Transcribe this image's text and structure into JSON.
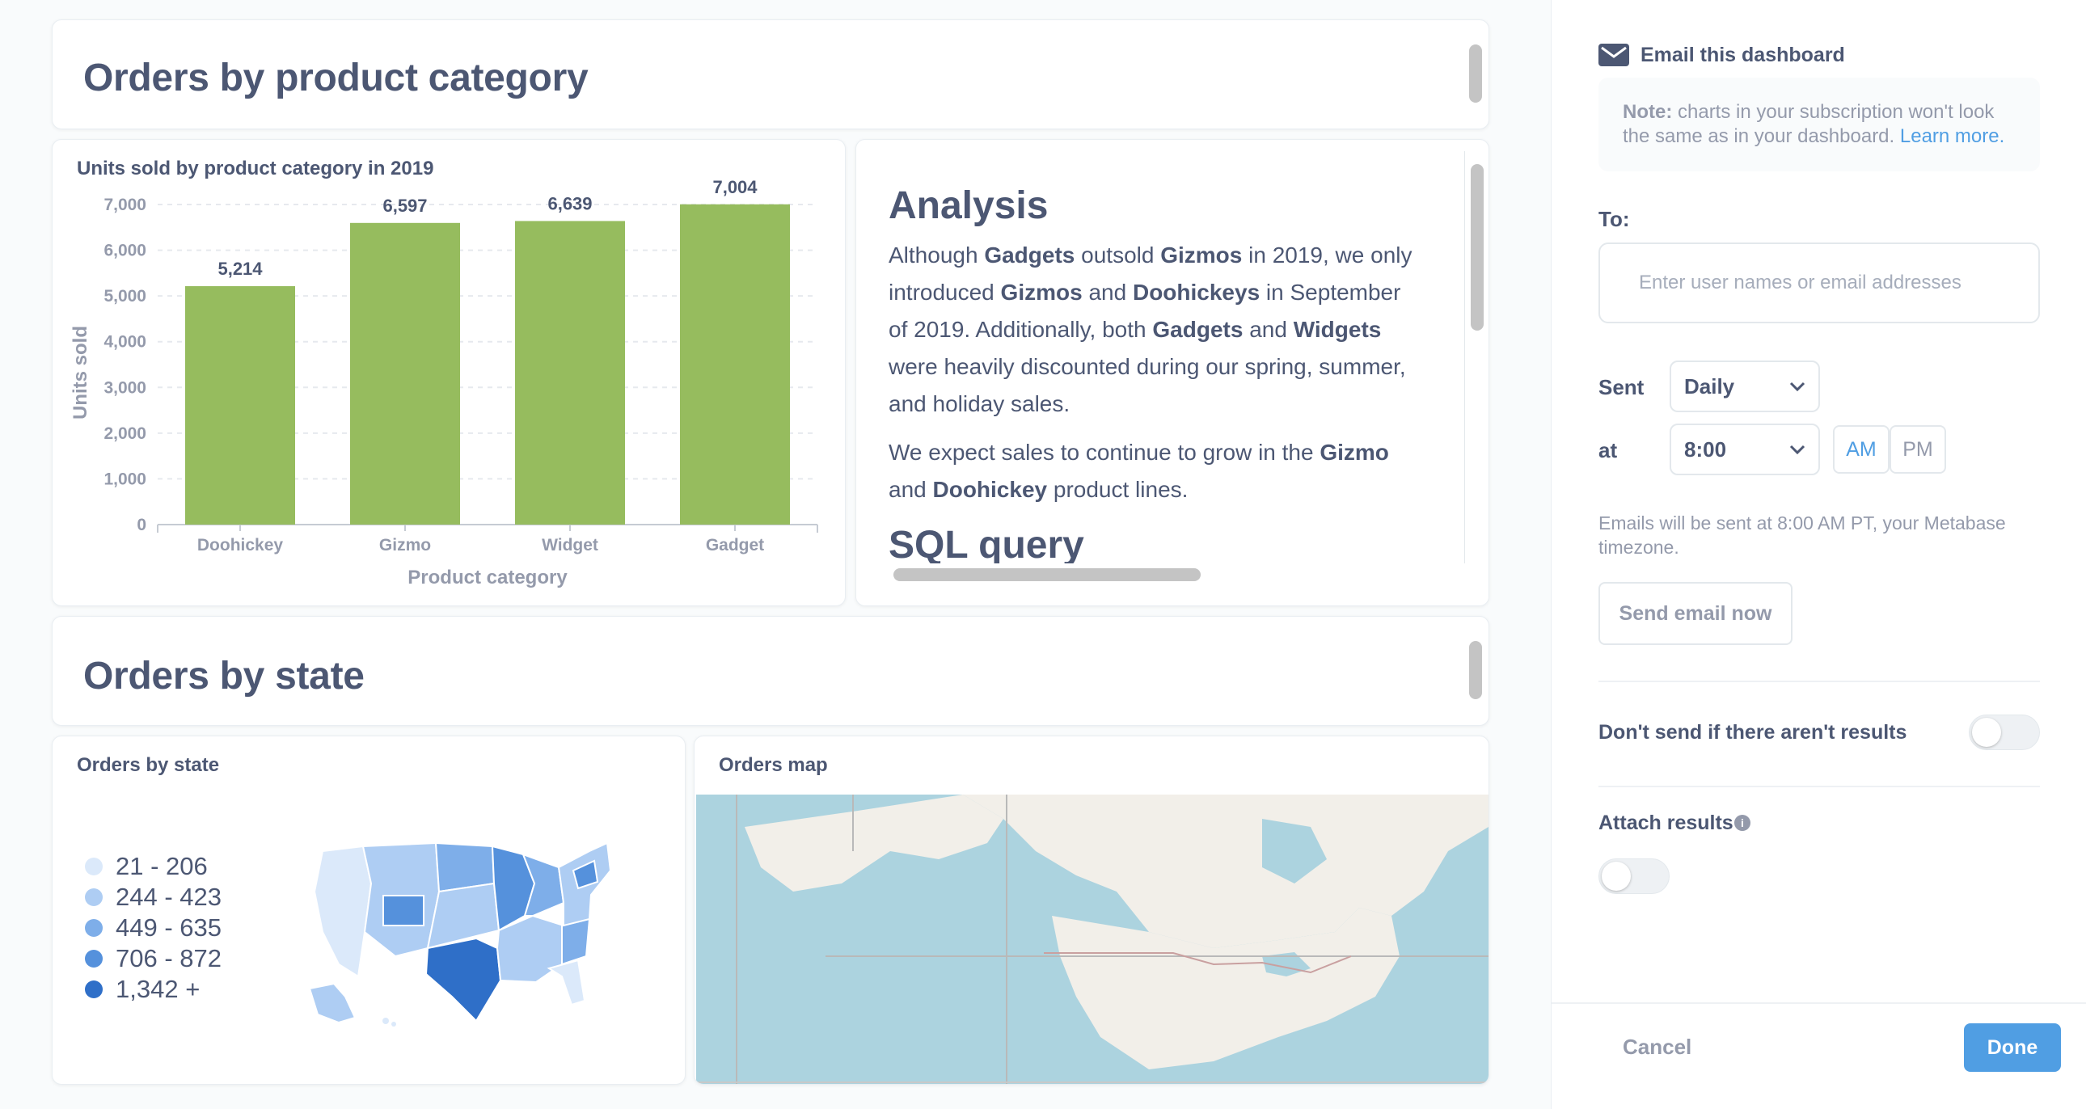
{
  "section1": {
    "title": "Orders by product category"
  },
  "bar_card": {
    "title": "Units sold by product category in 2019"
  },
  "analysis": {
    "heading": "Analysis",
    "p1": [
      {
        "t": "Although ",
        "b": false
      },
      {
        "t": "Gadgets",
        "b": true
      },
      {
        "t": " outsold ",
        "b": false
      },
      {
        "t": "Gizmos",
        "b": true
      },
      {
        "t": " in 2019, we only introduced ",
        "b": false
      },
      {
        "t": "Gizmos",
        "b": true
      },
      {
        "t": " and ",
        "b": false
      },
      {
        "t": "Doohickeys",
        "b": true
      },
      {
        "t": " in September of 2019. Additionally, both ",
        "b": false
      },
      {
        "t": "Gadgets",
        "b": true
      },
      {
        "t": " and ",
        "b": false
      },
      {
        "t": "Widgets",
        "b": true
      },
      {
        "t": " were heavily discounted during our spring, summer, and holiday sales.",
        "b": false
      }
    ],
    "p2": [
      {
        "t": "We expect sales to continue to grow in the ",
        "b": false
      },
      {
        "t": "Gizmo",
        "b": true
      },
      {
        "t": " and ",
        "b": false
      },
      {
        "t": "Doohickey",
        "b": true
      },
      {
        "t": " product lines.",
        "b": false
      }
    ],
    "next_heading": "SQL query"
  },
  "section2": {
    "title": "Orders by state"
  },
  "state_card": {
    "title": "Orders by state",
    "legend": [
      {
        "label": "21 - 206",
        "color": "#dbe9fa"
      },
      {
        "label": "244 - 423",
        "color": "#aecdf3"
      },
      {
        "label": "449 - 635",
        "color": "#7eaee9"
      },
      {
        "label": "706 - 872",
        "color": "#5591dc"
      },
      {
        "label": "1,342 +",
        "color": "#2f6fc8"
      }
    ]
  },
  "map_card": {
    "title": "Orders map"
  },
  "chart_data": {
    "type": "bar",
    "title": "Units sold by product category in 2019",
    "xlabel": "Product category",
    "ylabel": "Units sold",
    "categories": [
      "Doohickey",
      "Gizmo",
      "Widget",
      "Gadget"
    ],
    "values": [
      5214,
      6597,
      6639,
      7004
    ],
    "value_labels": [
      "5,214",
      "6,597",
      "6,639",
      "7,004"
    ],
    "ylim": [
      0,
      7000
    ],
    "yticks": [
      {
        "v": 0,
        "label": "0"
      },
      {
        "v": 1000,
        "label": "1,000"
      },
      {
        "v": 2000,
        "label": "2,000"
      },
      {
        "v": 3000,
        "label": "3,000"
      },
      {
        "v": 4000,
        "label": "4,000"
      },
      {
        "v": 5000,
        "label": "5,000"
      },
      {
        "v": 6000,
        "label": "6,000"
      },
      {
        "v": 7000,
        "label": "7,000"
      }
    ],
    "grid": true,
    "color": "#96bc5e"
  },
  "sidebar": {
    "email_title": "Email this dashboard",
    "note_bold": "Note:",
    "note_text": " charts in your subscription won't look the same as in your dashboard. ",
    "note_link": "Learn more.",
    "to_label": "To:",
    "to_placeholder": "Enter user names or email addresses",
    "sent_label": "Sent",
    "frequency": "Daily",
    "at_label": "at",
    "time": "8:00",
    "am": "AM",
    "pm": "PM",
    "timezone_note": "Emails will be sent at 8:00 AM PT, your Metabase timezone.",
    "send_now": "Send email now",
    "dont_send_label": "Don't send if there aren't results",
    "attach_label": "Attach results",
    "cancel": "Cancel",
    "done": "Done",
    "colors": {
      "accent": "#509ee3",
      "text": "#4c5773",
      "muted": "#949aab"
    }
  }
}
